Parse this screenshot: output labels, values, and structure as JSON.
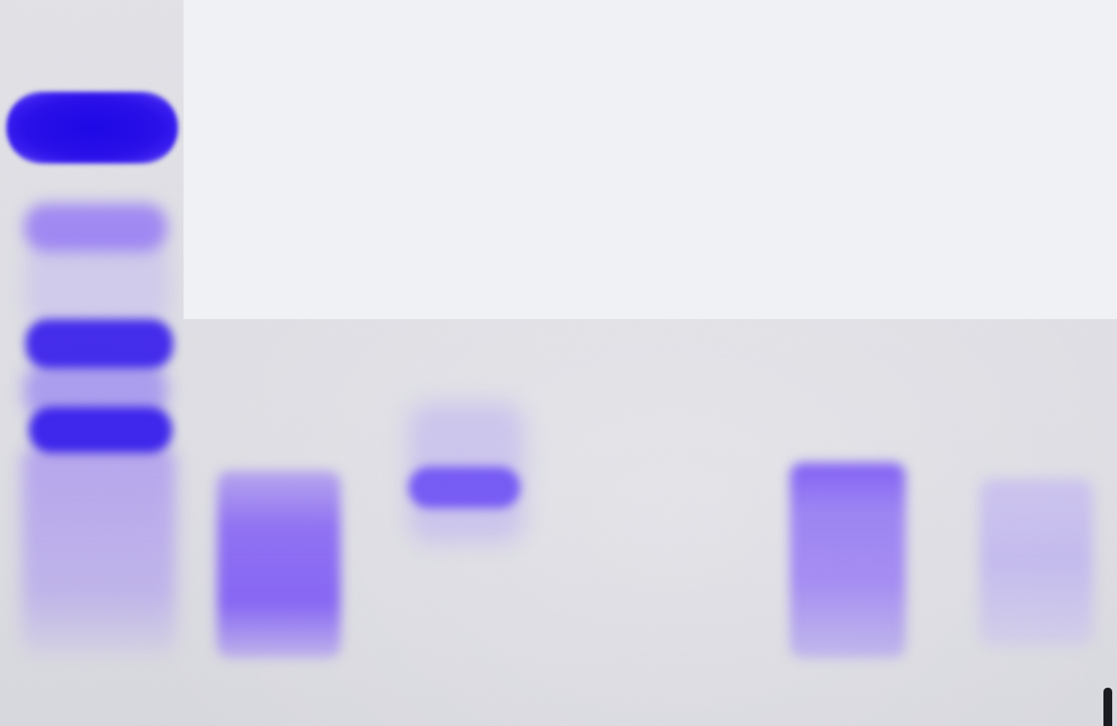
{
  "image": {
    "subject": "gel-electrophoresis",
    "stain_color": "#3a1ff0",
    "background_color": "#e4e4e9",
    "mask_color": "#eff1f5"
  },
  "lanes": [
    {
      "index": 1,
      "kind": "ladder",
      "bands": 4
    },
    {
      "index": 2,
      "kind": "sample",
      "bands": 1
    },
    {
      "index": 3,
      "kind": "sample",
      "bands": 1
    },
    {
      "index": 4,
      "kind": "sample",
      "bands": 0
    },
    {
      "index": 5,
      "kind": "sample",
      "bands": 1
    },
    {
      "index": 6,
      "kind": "sample",
      "bands": 1
    }
  ]
}
